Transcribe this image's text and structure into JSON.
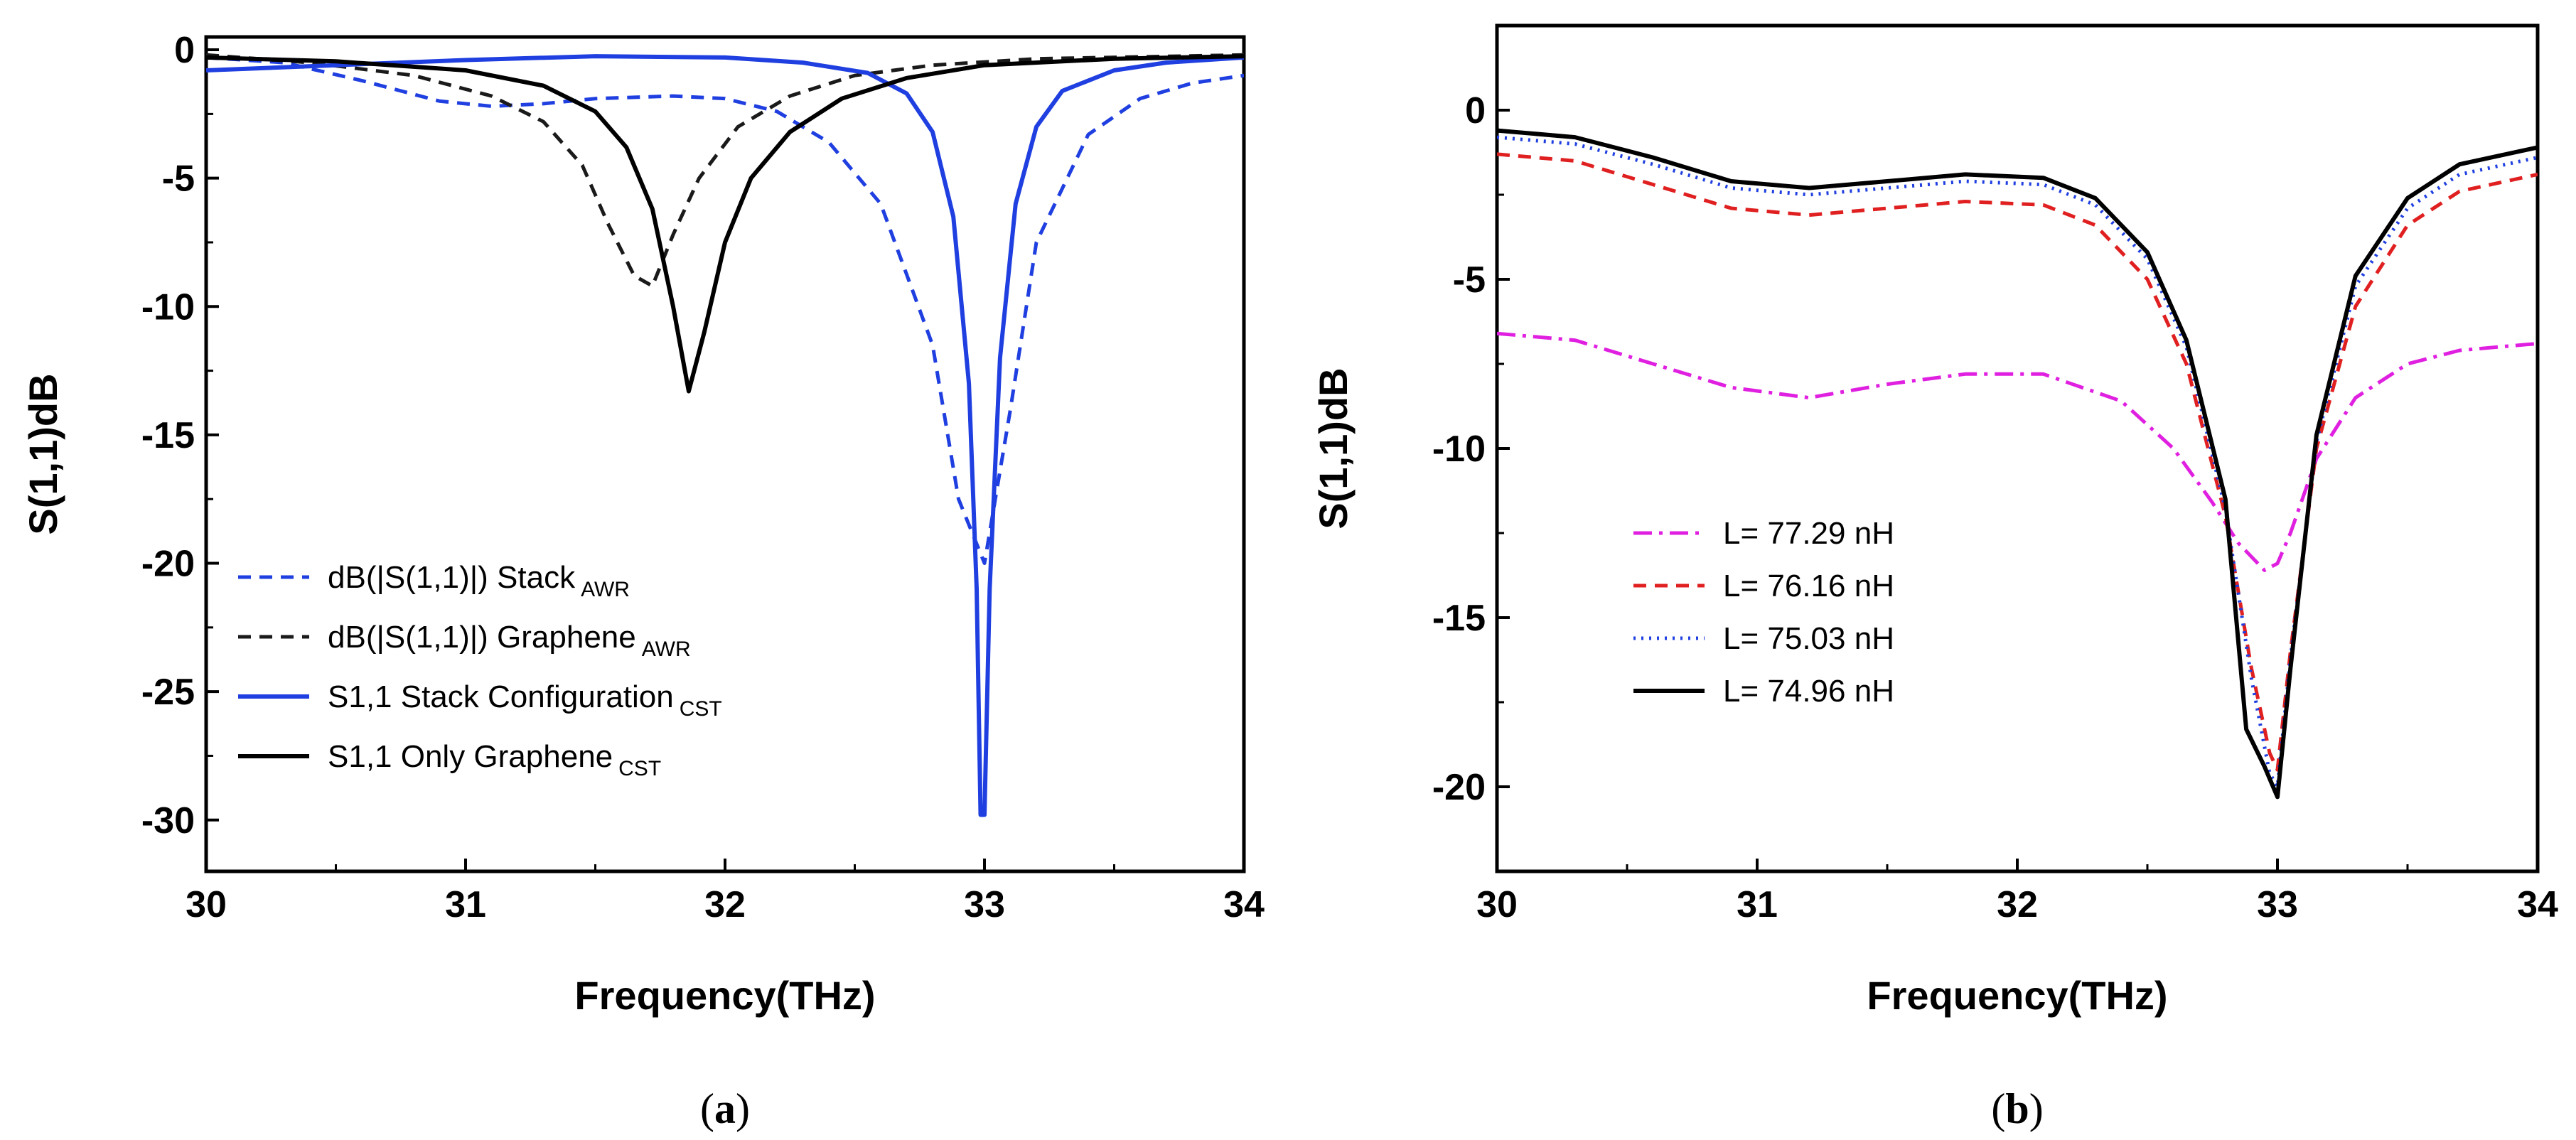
{
  "chart_data": [
    {
      "type": "line",
      "panel": "a",
      "caption": {
        "open": "(",
        "letter": "a",
        "close": ")"
      },
      "xlabel": "Frequency(THz)",
      "ylabel": "S(1,1)dB",
      "xlim": [
        30,
        34
      ],
      "ylim": [
        -32,
        0.5
      ],
      "xticks": [
        "30",
        "31",
        "32",
        "33",
        "34"
      ],
      "yticks": [
        "0",
        "-5",
        "-10",
        "-15",
        "-20",
        "-25",
        "-30"
      ],
      "series": [
        {
          "name": "dB(|S(1,1)|) Stack",
          "legend_main": "dB(|S(1,1)|) Stack",
          "legend_sub": "AWR",
          "color": "#1f3fe0",
          "dash": "dashed",
          "x": [
            30.0,
            30.3,
            30.6,
            30.9,
            31.1,
            31.3,
            31.5,
            31.8,
            32.0,
            32.2,
            32.4,
            32.6,
            32.8,
            32.9,
            33.0,
            33.1,
            33.2,
            33.4,
            33.6,
            33.8,
            34.0
          ],
          "y": [
            -0.3,
            -0.5,
            -1.2,
            -2.0,
            -2.2,
            -2.1,
            -1.9,
            -1.8,
            -1.9,
            -2.4,
            -3.6,
            -6.0,
            -11.5,
            -17.5,
            -20.0,
            -14.0,
            -7.5,
            -3.3,
            -1.9,
            -1.3,
            -1.0
          ]
        },
        {
          "name": "dB(|S(1,1)|) Graphene",
          "legend_main": "dB(|S(1,1)|) Graphene",
          "legend_sub": "AWR",
          "color": "#1a1a1a",
          "dash": "dashed",
          "x": [
            30.0,
            30.4,
            30.8,
            31.1,
            31.3,
            31.45,
            31.55,
            31.65,
            31.72,
            31.8,
            31.9,
            32.05,
            32.25,
            32.5,
            32.8,
            33.2,
            34.0
          ],
          "y": [
            -0.2,
            -0.5,
            -1.0,
            -1.8,
            -2.8,
            -4.5,
            -6.8,
            -8.8,
            -9.2,
            -7.2,
            -5.0,
            -3.0,
            -1.8,
            -1.0,
            -0.6,
            -0.35,
            -0.2
          ]
        },
        {
          "name": "S1,1 Stack Configuration",
          "legend_main": "S1,1 Stack Configuration",
          "legend_sub": "CST",
          "color": "#1f3fe0",
          "dash": "solid",
          "x": [
            30.0,
            30.5,
            31.0,
            31.5,
            32.0,
            32.3,
            32.55,
            32.7,
            32.8,
            32.88,
            32.94,
            32.97,
            32.985,
            33.0,
            33.02,
            33.06,
            33.12,
            33.2,
            33.3,
            33.5,
            33.7,
            34.0
          ],
          "y": [
            -0.8,
            -0.6,
            -0.4,
            -0.25,
            -0.3,
            -0.5,
            -0.9,
            -1.7,
            -3.2,
            -6.5,
            -13.0,
            -21.0,
            -29.8,
            -29.8,
            -21.0,
            -12.0,
            -6.0,
            -3.0,
            -1.6,
            -0.8,
            -0.5,
            -0.3
          ]
        },
        {
          "name": "S1,1 Only Graphene",
          "legend_main": "S1,1 Only Graphene",
          "legend_sub": "CST",
          "color": "#000000",
          "dash": "solid",
          "x": [
            30.0,
            30.5,
            31.0,
            31.3,
            31.5,
            31.62,
            31.72,
            31.8,
            31.86,
            31.92,
            32.0,
            32.1,
            32.25,
            32.45,
            32.7,
            33.0,
            33.5,
            34.0
          ],
          "y": [
            -0.3,
            -0.45,
            -0.8,
            -1.4,
            -2.4,
            -3.8,
            -6.2,
            -10.0,
            -13.3,
            -11.0,
            -7.5,
            -5.0,
            -3.2,
            -1.9,
            -1.1,
            -0.6,
            -0.35,
            -0.25
          ]
        }
      ]
    },
    {
      "type": "line",
      "panel": "b",
      "caption": {
        "open": "(",
        "letter": "b",
        "close": ")"
      },
      "xlabel": "Frequency(THz)",
      "ylabel": "S(1,1)dB",
      "xlim": [
        30,
        34
      ],
      "ylim": [
        -22.5,
        2.5
      ],
      "xticks": [
        "30",
        "31",
        "32",
        "33",
        "34"
      ],
      "yticks": [
        "0",
        "-5",
        "-10",
        "-15",
        "-20"
      ],
      "series": [
        {
          "name": "L= 77.29 nH",
          "color": "#e020e0",
          "dash": "dashdot",
          "x": [
            30.0,
            30.3,
            30.6,
            30.9,
            31.2,
            31.5,
            31.8,
            32.1,
            32.4,
            32.6,
            32.75,
            32.85,
            32.95,
            33.0,
            33.05,
            33.15,
            33.3,
            33.5,
            33.7,
            34.0
          ],
          "y": [
            -6.6,
            -6.8,
            -7.5,
            -8.2,
            -8.5,
            -8.1,
            -7.8,
            -7.8,
            -8.6,
            -10.0,
            -11.6,
            -12.8,
            -13.6,
            -13.4,
            -12.5,
            -10.3,
            -8.5,
            -7.5,
            -7.1,
            -6.9
          ]
        },
        {
          "name": "L= 76.16 nH",
          "color": "#e02020",
          "dash": "dashed",
          "x": [
            30.0,
            30.3,
            30.6,
            30.9,
            31.2,
            31.5,
            31.8,
            32.1,
            32.3,
            32.5,
            32.65,
            32.8,
            32.9,
            32.97,
            33.0,
            33.05,
            33.15,
            33.3,
            33.5,
            33.7,
            34.0
          ],
          "y": [
            -1.3,
            -1.5,
            -2.2,
            -2.9,
            -3.1,
            -2.9,
            -2.7,
            -2.8,
            -3.4,
            -5.0,
            -7.5,
            -12.0,
            -16.5,
            -19.0,
            -19.5,
            -16.0,
            -10.0,
            -5.8,
            -3.4,
            -2.4,
            -1.9
          ]
        },
        {
          "name": "L= 75.03 nH",
          "color": "#1f3fe0",
          "dash": "dotted",
          "x": [
            30.0,
            30.3,
            30.6,
            30.9,
            31.2,
            31.5,
            31.8,
            32.1,
            32.3,
            32.5,
            32.65,
            32.8,
            32.9,
            32.97,
            33.0,
            33.05,
            33.15,
            33.3,
            33.5,
            33.7,
            34.0
          ],
          "y": [
            -0.8,
            -1.0,
            -1.6,
            -2.3,
            -2.5,
            -2.3,
            -2.1,
            -2.2,
            -2.8,
            -4.4,
            -7.0,
            -11.8,
            -16.8,
            -19.6,
            -20.0,
            -16.2,
            -9.8,
            -5.2,
            -2.9,
            -1.9,
            -1.4
          ]
        },
        {
          "name": "L= 74.96 nH",
          "color": "#000000",
          "dash": "solid",
          "x": [
            30.0,
            30.3,
            30.6,
            30.9,
            31.2,
            31.5,
            31.8,
            32.1,
            32.3,
            32.5,
            32.65,
            32.8,
            32.88,
            32.95,
            33.0,
            33.05,
            33.15,
            33.3,
            33.5,
            33.7,
            34.0
          ],
          "y": [
            -0.6,
            -0.8,
            -1.4,
            -2.1,
            -2.3,
            -2.1,
            -1.9,
            -2.0,
            -2.6,
            -4.2,
            -6.8,
            -11.5,
            -18.3,
            -19.4,
            -20.3,
            -16.5,
            -9.6,
            -4.9,
            -2.6,
            -1.6,
            -1.1
          ]
        }
      ]
    }
  ]
}
